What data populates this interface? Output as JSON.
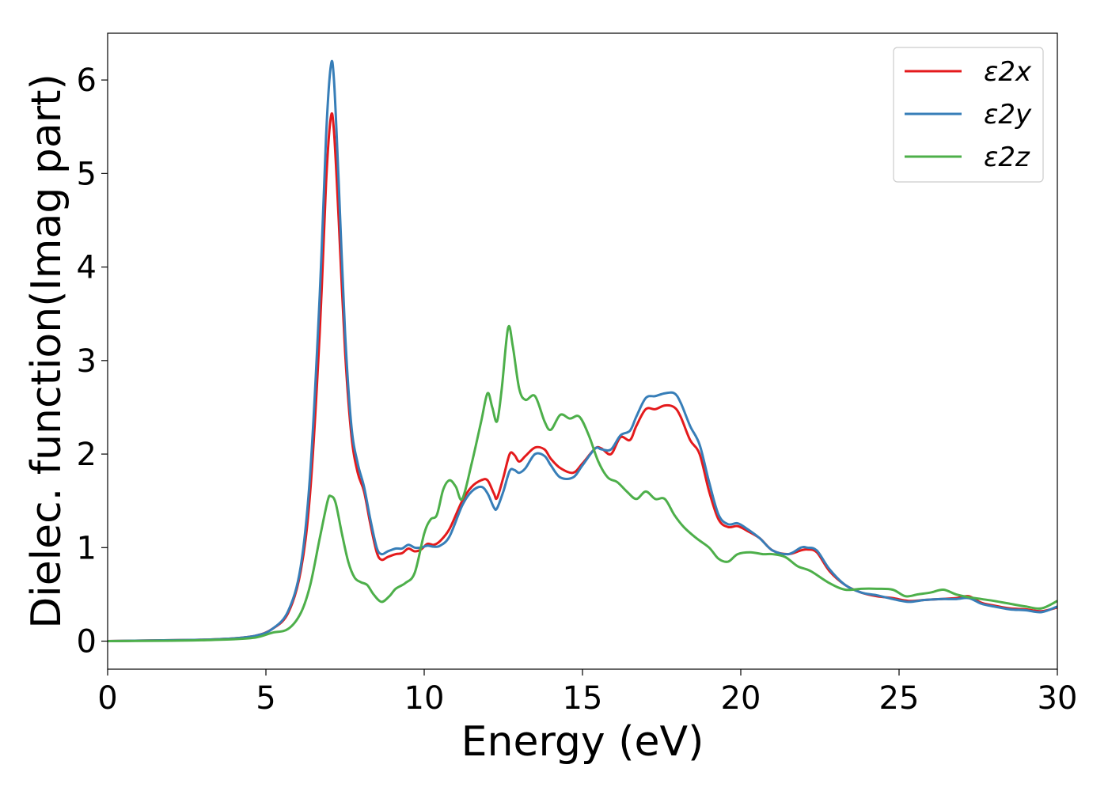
{
  "chart_data": {
    "type": "line",
    "title": "",
    "xlabel": "Energy (eV)",
    "ylabel": "Dielec. function(Imag part)",
    "xlim": [
      0,
      30
    ],
    "ylim": [
      -0.3,
      6.5
    ],
    "xticks": [
      "0",
      "5",
      "10",
      "15",
      "20",
      "25",
      "30"
    ],
    "yticks": [
      "0",
      "1",
      "2",
      "3",
      "4",
      "5",
      "6"
    ],
    "grid": false,
    "legend_position": "top-right",
    "series": [
      {
        "name": "ε2x",
        "color": "#e41a1c",
        "points": [
          [
            0,
            0
          ],
          [
            2,
            0.01
          ],
          [
            3,
            0.015
          ],
          [
            4,
            0.03
          ],
          [
            4.7,
            0.06
          ],
          [
            5.2,
            0.13
          ],
          [
            5.7,
            0.3
          ],
          [
            6.1,
            0.75
          ],
          [
            6.4,
            1.6
          ],
          [
            6.7,
            3.3
          ],
          [
            6.9,
            4.9
          ],
          [
            7.05,
            5.6
          ],
          [
            7.15,
            5.45
          ],
          [
            7.3,
            4.5
          ],
          [
            7.5,
            3.1
          ],
          [
            7.7,
            2.2
          ],
          [
            7.9,
            1.8
          ],
          [
            8.1,
            1.6
          ],
          [
            8.3,
            1.25
          ],
          [
            8.5,
            0.95
          ],
          [
            8.65,
            0.87
          ],
          [
            8.85,
            0.9
          ],
          [
            9.1,
            0.93
          ],
          [
            9.3,
            0.94
          ],
          [
            9.5,
            0.99
          ],
          [
            9.7,
            0.96
          ],
          [
            9.9,
            0.98
          ],
          [
            10.1,
            1.04
          ],
          [
            10.3,
            1.03
          ],
          [
            10.5,
            1.07
          ],
          [
            10.8,
            1.2
          ],
          [
            11.2,
            1.5
          ],
          [
            11.5,
            1.65
          ],
          [
            11.8,
            1.72
          ],
          [
            12.0,
            1.72
          ],
          [
            12.2,
            1.58
          ],
          [
            12.3,
            1.53
          ],
          [
            12.5,
            1.75
          ],
          [
            12.7,
            2.0
          ],
          [
            12.85,
            1.99
          ],
          [
            13.0,
            1.92
          ],
          [
            13.2,
            1.98
          ],
          [
            13.5,
            2.07
          ],
          [
            13.8,
            2.05
          ],
          [
            14.0,
            1.95
          ],
          [
            14.3,
            1.85
          ],
          [
            14.7,
            1.8
          ],
          [
            15.0,
            1.9
          ],
          [
            15.4,
            2.06
          ],
          [
            15.6,
            2.06
          ],
          [
            15.9,
            2.0
          ],
          [
            16.2,
            2.18
          ],
          [
            16.5,
            2.15
          ],
          [
            16.7,
            2.3
          ],
          [
            17.0,
            2.48
          ],
          [
            17.3,
            2.48
          ],
          [
            17.6,
            2.52
          ],
          [
            17.9,
            2.5
          ],
          [
            18.1,
            2.4
          ],
          [
            18.4,
            2.15
          ],
          [
            18.7,
            2.0
          ],
          [
            19.0,
            1.6
          ],
          [
            19.3,
            1.3
          ],
          [
            19.6,
            1.22
          ],
          [
            19.9,
            1.23
          ],
          [
            20.2,
            1.18
          ],
          [
            20.6,
            1.1
          ],
          [
            21.0,
            0.97
          ],
          [
            21.5,
            0.93
          ],
          [
            21.9,
            0.97
          ],
          [
            22.1,
            0.98
          ],
          [
            22.4,
            0.95
          ],
          [
            22.8,
            0.75
          ],
          [
            23.3,
            0.6
          ],
          [
            23.8,
            0.52
          ],
          [
            24.3,
            0.48
          ],
          [
            24.8,
            0.46
          ],
          [
            25.3,
            0.43
          ],
          [
            25.8,
            0.44
          ],
          [
            26.3,
            0.45
          ],
          [
            26.8,
            0.46
          ],
          [
            27.2,
            0.48
          ],
          [
            27.6,
            0.41
          ],
          [
            28.0,
            0.38
          ],
          [
            28.5,
            0.35
          ],
          [
            29.0,
            0.34
          ],
          [
            29.5,
            0.32
          ],
          [
            30.0,
            0.36
          ]
        ]
      },
      {
        "name": "ε2y",
        "color": "#377eb8",
        "points": [
          [
            0,
            0
          ],
          [
            2,
            0.01
          ],
          [
            3,
            0.015
          ],
          [
            4,
            0.03
          ],
          [
            4.7,
            0.06
          ],
          [
            5.2,
            0.13
          ],
          [
            5.7,
            0.32
          ],
          [
            6.1,
            0.8
          ],
          [
            6.4,
            1.8
          ],
          [
            6.7,
            3.7
          ],
          [
            6.9,
            5.4
          ],
          [
            7.05,
            6.15
          ],
          [
            7.15,
            6.0
          ],
          [
            7.3,
            4.9
          ],
          [
            7.5,
            3.3
          ],
          [
            7.7,
            2.3
          ],
          [
            7.9,
            1.9
          ],
          [
            8.1,
            1.65
          ],
          [
            8.3,
            1.3
          ],
          [
            8.5,
            1.0
          ],
          [
            8.65,
            0.93
          ],
          [
            8.85,
            0.96
          ],
          [
            9.1,
            0.99
          ],
          [
            9.3,
            0.99
          ],
          [
            9.5,
            1.03
          ],
          [
            9.7,
            1.0
          ],
          [
            9.9,
            1.0
          ],
          [
            10.1,
            1.02
          ],
          [
            10.3,
            1.01
          ],
          [
            10.5,
            1.02
          ],
          [
            10.8,
            1.12
          ],
          [
            11.2,
            1.45
          ],
          [
            11.5,
            1.6
          ],
          [
            11.8,
            1.65
          ],
          [
            12.0,
            1.58
          ],
          [
            12.2,
            1.43
          ],
          [
            12.3,
            1.42
          ],
          [
            12.5,
            1.6
          ],
          [
            12.7,
            1.82
          ],
          [
            12.85,
            1.83
          ],
          [
            13.0,
            1.8
          ],
          [
            13.2,
            1.85
          ],
          [
            13.5,
            2.0
          ],
          [
            13.8,
            1.98
          ],
          [
            14.0,
            1.88
          ],
          [
            14.3,
            1.75
          ],
          [
            14.7,
            1.75
          ],
          [
            15.0,
            1.88
          ],
          [
            15.4,
            2.06
          ],
          [
            15.6,
            2.05
          ],
          [
            15.9,
            2.05
          ],
          [
            16.2,
            2.2
          ],
          [
            16.5,
            2.25
          ],
          [
            16.7,
            2.4
          ],
          [
            17.0,
            2.6
          ],
          [
            17.3,
            2.62
          ],
          [
            17.6,
            2.65
          ],
          [
            17.9,
            2.65
          ],
          [
            18.1,
            2.55
          ],
          [
            18.4,
            2.3
          ],
          [
            18.7,
            2.1
          ],
          [
            19.0,
            1.7
          ],
          [
            19.3,
            1.35
          ],
          [
            19.6,
            1.25
          ],
          [
            19.9,
            1.26
          ],
          [
            20.2,
            1.2
          ],
          [
            20.6,
            1.1
          ],
          [
            21.0,
            0.97
          ],
          [
            21.5,
            0.93
          ],
          [
            21.9,
            1.0
          ],
          [
            22.1,
            1.0
          ],
          [
            22.4,
            0.97
          ],
          [
            22.8,
            0.77
          ],
          [
            23.3,
            0.6
          ],
          [
            23.8,
            0.52
          ],
          [
            24.3,
            0.49
          ],
          [
            24.8,
            0.45
          ],
          [
            25.3,
            0.42
          ],
          [
            25.8,
            0.44
          ],
          [
            26.3,
            0.45
          ],
          [
            26.8,
            0.45
          ],
          [
            27.2,
            0.46
          ],
          [
            27.6,
            0.4
          ],
          [
            28.0,
            0.37
          ],
          [
            28.5,
            0.34
          ],
          [
            29.0,
            0.33
          ],
          [
            29.5,
            0.31
          ],
          [
            30.0,
            0.37
          ]
        ]
      },
      {
        "name": "ε2z",
        "color": "#4daf4a",
        "points": [
          [
            0,
            0
          ],
          [
            2,
            0.005
          ],
          [
            3,
            0.01
          ],
          [
            4,
            0.02
          ],
          [
            4.7,
            0.04
          ],
          [
            5.2,
            0.09
          ],
          [
            5.7,
            0.13
          ],
          [
            6.1,
            0.3
          ],
          [
            6.4,
            0.6
          ],
          [
            6.7,
            1.1
          ],
          [
            6.95,
            1.5
          ],
          [
            7.05,
            1.55
          ],
          [
            7.2,
            1.48
          ],
          [
            7.4,
            1.15
          ],
          [
            7.6,
            0.85
          ],
          [
            7.8,
            0.68
          ],
          [
            8.0,
            0.63
          ],
          [
            8.2,
            0.6
          ],
          [
            8.4,
            0.5
          ],
          [
            8.65,
            0.42
          ],
          [
            8.9,
            0.48
          ],
          [
            9.1,
            0.56
          ],
          [
            9.4,
            0.62
          ],
          [
            9.7,
            0.73
          ],
          [
            10.0,
            1.15
          ],
          [
            10.2,
            1.3
          ],
          [
            10.4,
            1.35
          ],
          [
            10.6,
            1.62
          ],
          [
            10.8,
            1.72
          ],
          [
            11.0,
            1.65
          ],
          [
            11.2,
            1.52
          ],
          [
            11.5,
            1.9
          ],
          [
            11.8,
            2.35
          ],
          [
            12.0,
            2.65
          ],
          [
            12.15,
            2.5
          ],
          [
            12.3,
            2.35
          ],
          [
            12.45,
            2.7
          ],
          [
            12.65,
            3.35
          ],
          [
            12.8,
            3.15
          ],
          [
            13.0,
            2.7
          ],
          [
            13.2,
            2.58
          ],
          [
            13.5,
            2.62
          ],
          [
            13.8,
            2.35
          ],
          [
            14.0,
            2.26
          ],
          [
            14.3,
            2.42
          ],
          [
            14.6,
            2.38
          ],
          [
            14.9,
            2.4
          ],
          [
            15.2,
            2.2
          ],
          [
            15.5,
            1.92
          ],
          [
            15.8,
            1.75
          ],
          [
            16.1,
            1.7
          ],
          [
            16.4,
            1.6
          ],
          [
            16.7,
            1.52
          ],
          [
            17.0,
            1.6
          ],
          [
            17.3,
            1.52
          ],
          [
            17.6,
            1.52
          ],
          [
            17.9,
            1.35
          ],
          [
            18.2,
            1.22
          ],
          [
            18.6,
            1.1
          ],
          [
            19.0,
            1.0
          ],
          [
            19.3,
            0.88
          ],
          [
            19.6,
            0.85
          ],
          [
            19.9,
            0.93
          ],
          [
            20.3,
            0.95
          ],
          [
            20.7,
            0.93
          ],
          [
            21.0,
            0.93
          ],
          [
            21.4,
            0.9
          ],
          [
            21.8,
            0.8
          ],
          [
            22.2,
            0.75
          ],
          [
            22.8,
            0.62
          ],
          [
            23.3,
            0.55
          ],
          [
            23.8,
            0.56
          ],
          [
            24.3,
            0.56
          ],
          [
            24.8,
            0.55
          ],
          [
            25.2,
            0.48
          ],
          [
            25.6,
            0.5
          ],
          [
            26.0,
            0.52
          ],
          [
            26.4,
            0.55
          ],
          [
            26.8,
            0.5
          ],
          [
            27.2,
            0.47
          ],
          [
            27.6,
            0.45
          ],
          [
            28.0,
            0.43
          ],
          [
            28.5,
            0.4
          ],
          [
            29.0,
            0.37
          ],
          [
            29.5,
            0.35
          ],
          [
            30.0,
            0.43
          ]
        ]
      }
    ]
  }
}
